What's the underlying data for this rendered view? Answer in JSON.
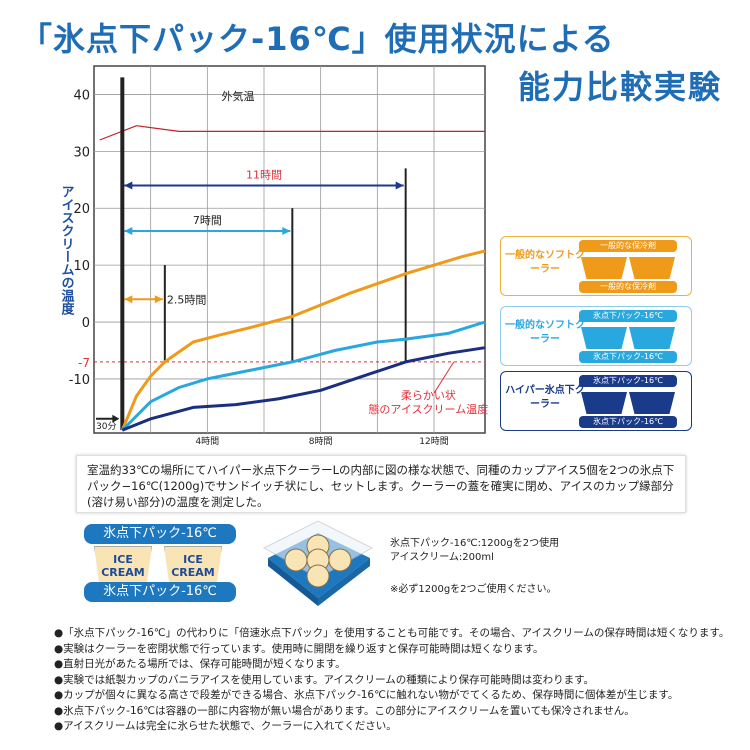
{
  "title": {
    "line1": "「氷点下パック-16℃」使用状況による",
    "line2": "能力比較実験"
  },
  "chart_data": {
    "type": "line",
    "ylabel": "アイスクリームの温度",
    "ylim": [
      -19.5,
      45
    ],
    "xlim": [
      0,
      13.8
    ],
    "yticks": [
      40,
      30,
      20,
      10,
      0,
      -10
    ],
    "ytick_labels": [
      "40",
      "30",
      "20",
      "10",
      "0",
      "-10"
    ],
    "threshold": {
      "value": -7,
      "label": "-7",
      "annotation": "柔らかい状態のアイスクリーム温度",
      "color": "#e0303a"
    },
    "xticks": [
      {
        "x": 4,
        "label": "4時間"
      },
      {
        "x": 8,
        "label": "8時間"
      },
      {
        "x": 12,
        "label": "12時間"
      }
    ],
    "start_label": "30分",
    "outside_temp": {
      "label": "外気温",
      "color": "#c0202a",
      "x": [
        0.2,
        1.5,
        3,
        13.8
      ],
      "y": [
        32,
        34.5,
        33.5,
        33.5
      ]
    },
    "series": [
      {
        "color": "#f09a1a",
        "x": [
          1,
          1.5,
          2,
          2.5,
          3.5,
          4.5,
          5.5,
          7,
          9,
          11,
          13,
          13.8
        ],
        "y": [
          -19,
          -13,
          -9.5,
          -7,
          -3.5,
          -2.2,
          -1,
          1,
          5,
          8.5,
          11.5,
          12.5
        ]
      },
      {
        "color": "#29a8e0",
        "x": [
          1,
          2,
          3,
          4,
          5.5,
          7,
          8.5,
          10,
          11,
          12.5,
          13.8
        ],
        "y": [
          -19,
          -14,
          -11.5,
          -10,
          -8.5,
          -7,
          -5,
          -3.5,
          -3,
          -2,
          0
        ]
      },
      {
        "color": "#1a2f80",
        "x": [
          1,
          2,
          3.5,
          5,
          6.5,
          8,
          9.5,
          11,
          12.5,
          13.8
        ],
        "y": [
          -19,
          -17,
          -15,
          -14.5,
          -13.5,
          -12,
          -9.5,
          -7,
          -5.5,
          -4.5
        ]
      }
    ],
    "durations": [
      {
        "label": "11時間",
        "hours": 11,
        "color": "#1a3a8a",
        "label_color": "#e0303a",
        "arrow_y": 24,
        "top": 27
      },
      {
        "label": "7時間",
        "hours": 7,
        "color": "#29a8e0",
        "label_color": "#222",
        "arrow_y": 16,
        "top": 20
      },
      {
        "label": "2.5時間",
        "hours": 2.5,
        "color": "#f09a1a",
        "label_color": "#222",
        "arrow_y": 4,
        "top": 10
      }
    ],
    "grid": true
  },
  "legend": [
    {
      "label": "一般的なソフトクーラー",
      "top_pack": "一般的な保冷剤",
      "bottom_pack": "一般的な保冷剤",
      "color": "#f09a1a",
      "border": "#f0b040"
    },
    {
      "label": "一般的なソフトクーラー",
      "top_pack": "氷点下パック-16℃",
      "bottom_pack": "氷点下パック-16℃",
      "color": "#29a8e0",
      "border": "#8ccdf0"
    },
    {
      "label": "ハイパー氷点下クーラー",
      "top_pack": "氷点下パック-16℃",
      "bottom_pack": "氷点下パック-16℃",
      "color": "#1a3a8a",
      "border": "#1a3a8a"
    }
  ],
  "description": "室温約33℃の場所にてハイパー氷点下クーラーLの内部に図の様な状態で、同種のカップアイス5個を2つの氷点下パック−16℃(1200g)でサンドイッチ状にし、セットします。クーラーの蓋を確実に閉め、アイスのカップ縁部分(溶け易い部分)の温度を測定した。",
  "diagram": {
    "pack_label": "氷点下パック-16℃",
    "cup_label": "ICE CREAM"
  },
  "info": {
    "line1": "氷点下パック-16℃:1200gを2つ使用",
    "line2": "アイスクリーム:200ml",
    "note": "※必ず1200gを2つご使用ください。"
  },
  "notes": [
    "●「氷点下パック-16℃」の代わりに「倍速氷点下パック」を使用することも可能です。その場合、アイスクリームの保存時間は短くなります。",
    "●実験はクーラーを密閉状態で行っています。使用時に開閉を繰り返すと保存可能時間は短くなります。",
    "●直射日光があたる場所では、保存可能時間が短くなります。",
    "●実験では紙製カップのバニラアイスを使用しています。アイスクリームの種類により保存可能時間は変わります。",
    "●カップが個々に異なる高さで段差ができる場合、氷点下パック-16℃に触れない物がでてくるため、保存時間に個体差が生じます。",
    "●氷点下パック-16℃は容器の一部に内容物が無い場合があります。この部分にアイスクリームを置いても保冷されません。",
    "●アイスクリームは完全に氷らせた状態で、クーラーに入れてください。"
  ]
}
